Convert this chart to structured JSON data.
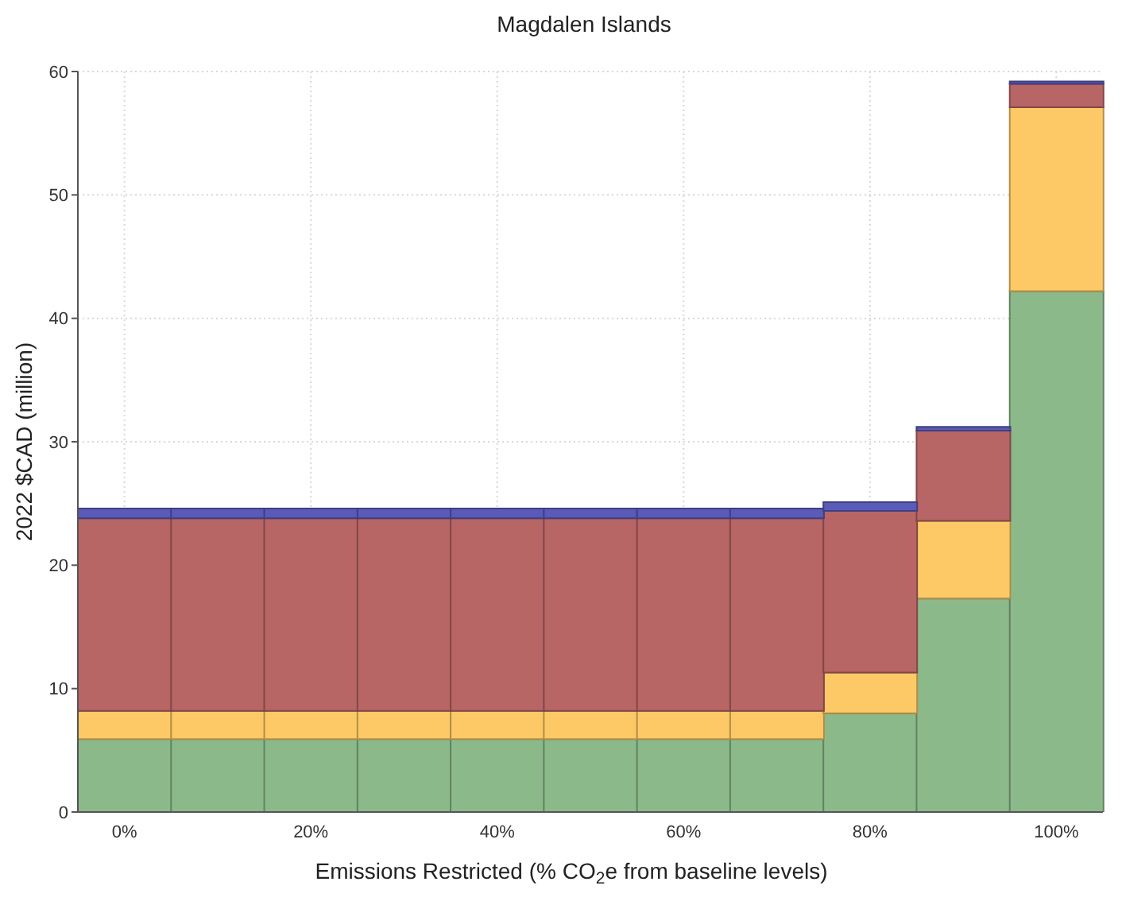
{
  "chart_data": {
    "type": "bar",
    "title": "Magdalen Islands",
    "xlabel": "Emissions Restricted (% CO$_{2}$e from baseline levels)",
    "ylabel": "2022 $CAD (million)",
    "categories": [
      "0%",
      null,
      "20%",
      null,
      "40%",
      null,
      "60%",
      null,
      "80%",
      null,
      "100%"
    ],
    "stacked": true,
    "series": [
      {
        "color": "#8cb98a",
        "values": [
          5.9,
          5.9,
          5.9,
          5.9,
          5.9,
          5.9,
          5.9,
          5.9,
          8.0,
          17.3,
          42.2
        ]
      },
      {
        "color": "#fdc966",
        "values": [
          2.3,
          2.3,
          2.3,
          2.3,
          2.3,
          2.3,
          2.3,
          2.3,
          3.3,
          6.3,
          14.9
        ]
      },
      {
        "color": "#b86565",
        "values": [
          15.6,
          15.6,
          15.6,
          15.6,
          15.6,
          15.6,
          15.6,
          15.6,
          13.1,
          7.3,
          1.9
        ]
      },
      {
        "color": "#5a5ab8",
        "values": [
          0.8,
          0.8,
          0.8,
          0.8,
          0.8,
          0.8,
          0.8,
          0.8,
          0.7,
          0.3,
          0.2
        ]
      }
    ],
    "ylim": [
      0,
      60
    ],
    "yticks": [
      0,
      10,
      20,
      30,
      40,
      50,
      60
    ],
    "grid": true,
    "legend": false
  }
}
